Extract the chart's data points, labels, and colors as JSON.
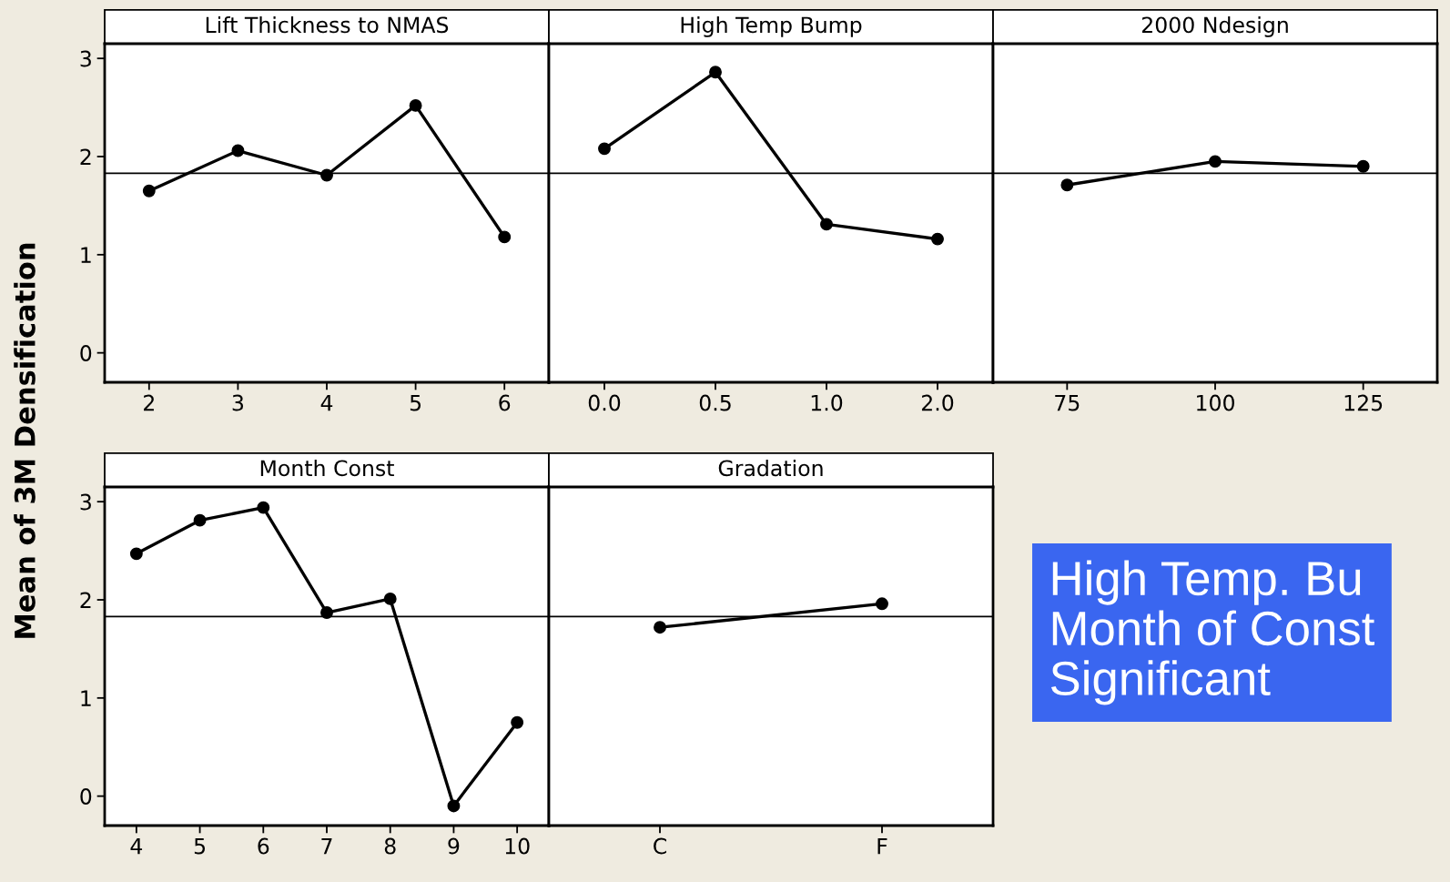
{
  "chart_data": [
    {
      "type": "line",
      "title": "Lift Thickness to NMAS",
      "ylabel": "Mean of 3M Densification",
      "categories": [
        "2",
        "3",
        "4",
        "5",
        "6"
      ],
      "series": [
        {
          "color": "#000000",
          "values": [
            1.65,
            2.06,
            1.81,
            2.52,
            1.18
          ]
        }
      ],
      "ylim": [
        -0.3,
        3.15
      ],
      "yticks": [
        0,
        1,
        2,
        3
      ],
      "ref_lines": [
        {
          "axis": "y",
          "value": 1.83,
          "color": "#000000"
        }
      ],
      "marker": "circle",
      "grid": false,
      "legend": false
    },
    {
      "type": "line",
      "title": "High Temp Bump",
      "categories": [
        "0.0",
        "0.5",
        "1.0",
        "2.0"
      ],
      "series": [
        {
          "color": "#000000",
          "values": [
            2.08,
            2.86,
            1.31,
            1.16
          ]
        }
      ],
      "ylim": [
        -0.3,
        3.15
      ],
      "yticks": [
        0,
        1,
        2,
        3
      ],
      "tick_labels": "x",
      "ref_lines": [
        {
          "axis": "y",
          "value": 1.83,
          "color": "#000000"
        }
      ],
      "marker": "circle",
      "grid": false,
      "legend": false
    },
    {
      "type": "line",
      "title": "2000 Ndesign",
      "categories": [
        "75",
        "100",
        "125"
      ],
      "series": [
        {
          "color": "#000000",
          "values": [
            1.71,
            1.95,
            1.9
          ]
        }
      ],
      "ylim": [
        -0.3,
        3.15
      ],
      "yticks": [
        0,
        1,
        2,
        3
      ],
      "tick_labels": "x",
      "ref_lines": [
        {
          "axis": "y",
          "value": 1.83,
          "color": "#000000"
        }
      ],
      "marker": "circle",
      "grid": false,
      "legend": false
    },
    {
      "type": "line",
      "title": "Month Const",
      "categories": [
        "4",
        "5",
        "6",
        "7",
        "8",
        "9",
        "10"
      ],
      "series": [
        {
          "color": "#000000",
          "values": [
            2.47,
            2.81,
            2.94,
            1.87,
            2.01,
            -0.1,
            0.75
          ]
        }
      ],
      "ylim": [
        -0.3,
        3.15
      ],
      "yticks": [
        0,
        1,
        2,
        3
      ],
      "ref_lines": [
        {
          "axis": "y",
          "value": 1.83,
          "color": "#000000"
        }
      ],
      "marker": "circle",
      "grid": false,
      "legend": false
    },
    {
      "type": "line",
      "title": "Gradation",
      "categories": [
        "C",
        "F"
      ],
      "series": [
        {
          "color": "#000000",
          "values": [
            1.72,
            1.96
          ]
        }
      ],
      "ylim": [
        -0.3,
        3.15
      ],
      "yticks": [
        0,
        1,
        2,
        3
      ],
      "tick_labels": "x",
      "ref_lines": [
        {
          "axis": "y",
          "value": 1.83,
          "color": "#000000"
        }
      ],
      "marker": "circle",
      "grid": false,
      "legend": false
    },
    {
      "type": "other",
      "annotations": [
        "High Temp. Bu\nMonth of Const\nSignificant"
      ]
    }
  ]
}
